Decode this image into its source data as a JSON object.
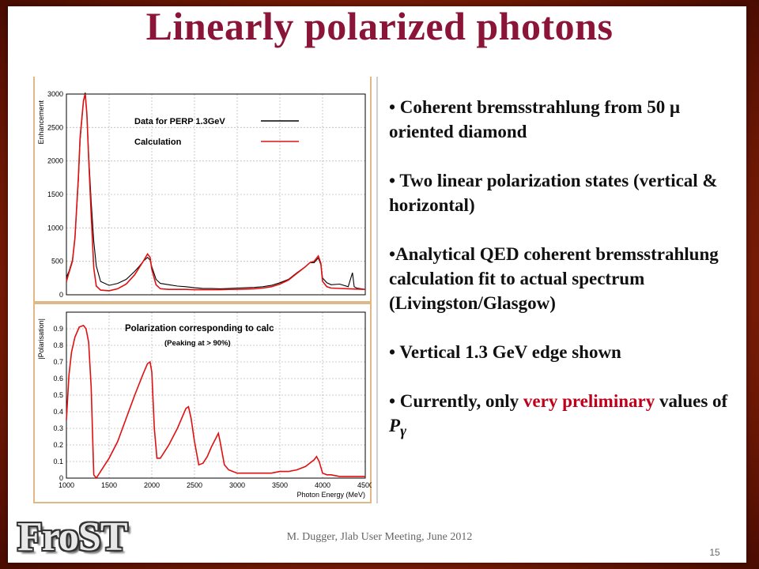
{
  "title": "Linearly polarized photons",
  "bullets": [
    {
      "text": "• Coherent bremsstrahlung from 50 μ oriented diamond"
    },
    {
      "text": "• Two linear polarization states (vertical & horizontal)"
    },
    {
      "text": "•Analytical QED coherent bremsstrahlung calculation fit to actual spectrum (Livingston/Glasgow)"
    },
    {
      "text": "• Vertical 1.3 GeV edge shown"
    }
  ],
  "last_bullet": {
    "prefix": "• Currently, only ",
    "highlight": "very preliminary",
    "suffix": " values of ",
    "symbol": "P",
    "subscript": "γ"
  },
  "footer": "M. Dugger, Jlab User Meeting, June 2012",
  "page_number": "15",
  "logo_text": "FroST",
  "colors": {
    "title": "#8b1538",
    "highlight": "#c0001a",
    "data": "#000000",
    "calc": "#e01010",
    "plot_border": "#deb887"
  },
  "chart_data": [
    {
      "type": "line",
      "title": "",
      "ylabel": "Enhancement",
      "xlabel": "",
      "xlim": [
        1000,
        4500
      ],
      "ylim": [
        0,
        3000
      ],
      "y_ticks": [
        0,
        500,
        1000,
        1500,
        2000,
        2500,
        3000
      ],
      "y_tick_labels": [
        "0",
        "500",
        "1000",
        "1500",
        "2000",
        "2500",
        "3000"
      ],
      "legend": [
        {
          "label": "Data for PERP 1.3GeV",
          "color": "#000000"
        },
        {
          "label": "Calculation",
          "color": "#e01010"
        }
      ],
      "grid": true,
      "series": [
        {
          "name": "Data for PERP 1.3GeV",
          "x": [
            1000,
            1030,
            1070,
            1100,
            1140,
            1160,
            1200,
            1220,
            1240,
            1260,
            1290,
            1320,
            1350,
            1400,
            1500,
            1600,
            1700,
            1800,
            1850,
            1900,
            1950,
            1980,
            2000,
            2050,
            2100,
            2200,
            2300,
            2400,
            2500,
            2600,
            2700,
            2800,
            2900,
            3000,
            3100,
            3200,
            3300,
            3400,
            3500,
            3600,
            3700,
            3800,
            3850,
            3900,
            3950,
            3980,
            4000,
            4050,
            4100,
            4200,
            4300,
            4350,
            4370,
            4400,
            4500
          ],
          "y": [
            260,
            350,
            520,
            850,
            1700,
            2300,
            2900,
            3020,
            2700,
            2100,
            1400,
            800,
            430,
            200,
            140,
            170,
            230,
            350,
            420,
            500,
            560,
            520,
            420,
            230,
            170,
            150,
            130,
            120,
            105,
            95,
            95,
            90,
            95,
            100,
            105,
            110,
            120,
            140,
            180,
            230,
            330,
            420,
            480,
            480,
            550,
            450,
            250,
            180,
            150,
            160,
            120,
            330,
            120,
            100,
            80
          ]
        },
        {
          "name": "Calculation",
          "x": [
            1000,
            1030,
            1070,
            1100,
            1140,
            1160,
            1200,
            1220,
            1240,
            1260,
            1290,
            1320,
            1350,
            1400,
            1500,
            1600,
            1700,
            1800,
            1850,
            1900,
            1950,
            1980,
            2000,
            2050,
            2100,
            2200,
            2300,
            2400,
            2500,
            2600,
            2700,
            2800,
            2900,
            3000,
            3100,
            3200,
            3300,
            3400,
            3500,
            3600,
            3700,
            3800,
            3850,
            3900,
            3950,
            3980,
            4000,
            4050,
            4100,
            4200,
            4300,
            4500
          ],
          "y": [
            200,
            330,
            500,
            850,
            1750,
            2350,
            2900,
            3000,
            2700,
            2050,
            1200,
            400,
            130,
            70,
            60,
            90,
            160,
            300,
            400,
            500,
            610,
            560,
            380,
            150,
            90,
            80,
            80,
            80,
            75,
            75,
            75,
            75,
            80,
            80,
            85,
            90,
            100,
            120,
            160,
            220,
            320,
            420,
            480,
            500,
            580,
            470,
            200,
            120,
            100,
            95,
            90,
            80
          ]
        }
      ]
    },
    {
      "type": "line",
      "title": "Polarization corresponding to calc",
      "subtitle": "(Peaking at > 90%)",
      "ylabel": "|Polarisation|",
      "xlabel": "Photon Energy (MeV)",
      "xlim": [
        1000,
        4500
      ],
      "ylim": [
        0,
        1.0
      ],
      "x_ticks": [
        1000,
        1500,
        2000,
        2500,
        3000,
        3500,
        4000,
        4500
      ],
      "x_tick_labels": [
        "1000",
        "1500",
        "2000",
        "2500",
        "3000",
        "3500",
        "4000",
        "4500"
      ],
      "y_ticks": [
        0,
        0.1,
        0.2,
        0.3,
        0.4,
        0.5,
        0.6,
        0.7,
        0.8,
        0.9
      ],
      "y_tick_labels": [
        "0",
        "0.1",
        "0.2",
        "0.3",
        "0.4",
        "0.5",
        "0.6",
        "0.7",
        "0.8",
        "0.9"
      ],
      "grid": true,
      "series": [
        {
          "name": "",
          "x": [
            1000,
            1030,
            1060,
            1100,
            1150,
            1200,
            1230,
            1260,
            1290,
            1320,
            1350,
            1400,
            1450,
            1500,
            1600,
            1700,
            1800,
            1900,
            1950,
            1980,
            2000,
            2030,
            2060,
            2100,
            2200,
            2300,
            2400,
            2430,
            2460,
            2500,
            2550,
            2600,
            2650,
            2700,
            2750,
            2780,
            2800,
            2850,
            2900,
            2950,
            3000,
            3100,
            3200,
            3300,
            3400,
            3500,
            3600,
            3700,
            3800,
            3850,
            3900,
            3930,
            3960,
            4000,
            4050,
            4100,
            4200,
            4300,
            4400,
            4500
          ],
          "y": [
            0.35,
            0.62,
            0.76,
            0.85,
            0.91,
            0.92,
            0.9,
            0.82,
            0.55,
            0.02,
            0.0,
            0.04,
            0.08,
            0.12,
            0.22,
            0.36,
            0.5,
            0.63,
            0.69,
            0.7,
            0.64,
            0.3,
            0.12,
            0.12,
            0.2,
            0.3,
            0.42,
            0.43,
            0.36,
            0.22,
            0.08,
            0.09,
            0.13,
            0.19,
            0.24,
            0.27,
            0.22,
            0.08,
            0.05,
            0.04,
            0.03,
            0.03,
            0.03,
            0.03,
            0.03,
            0.04,
            0.04,
            0.05,
            0.07,
            0.09,
            0.11,
            0.13,
            0.1,
            0.03,
            0.02,
            0.02,
            0.01,
            0.01,
            0.01,
            0.01
          ]
        }
      ]
    }
  ]
}
